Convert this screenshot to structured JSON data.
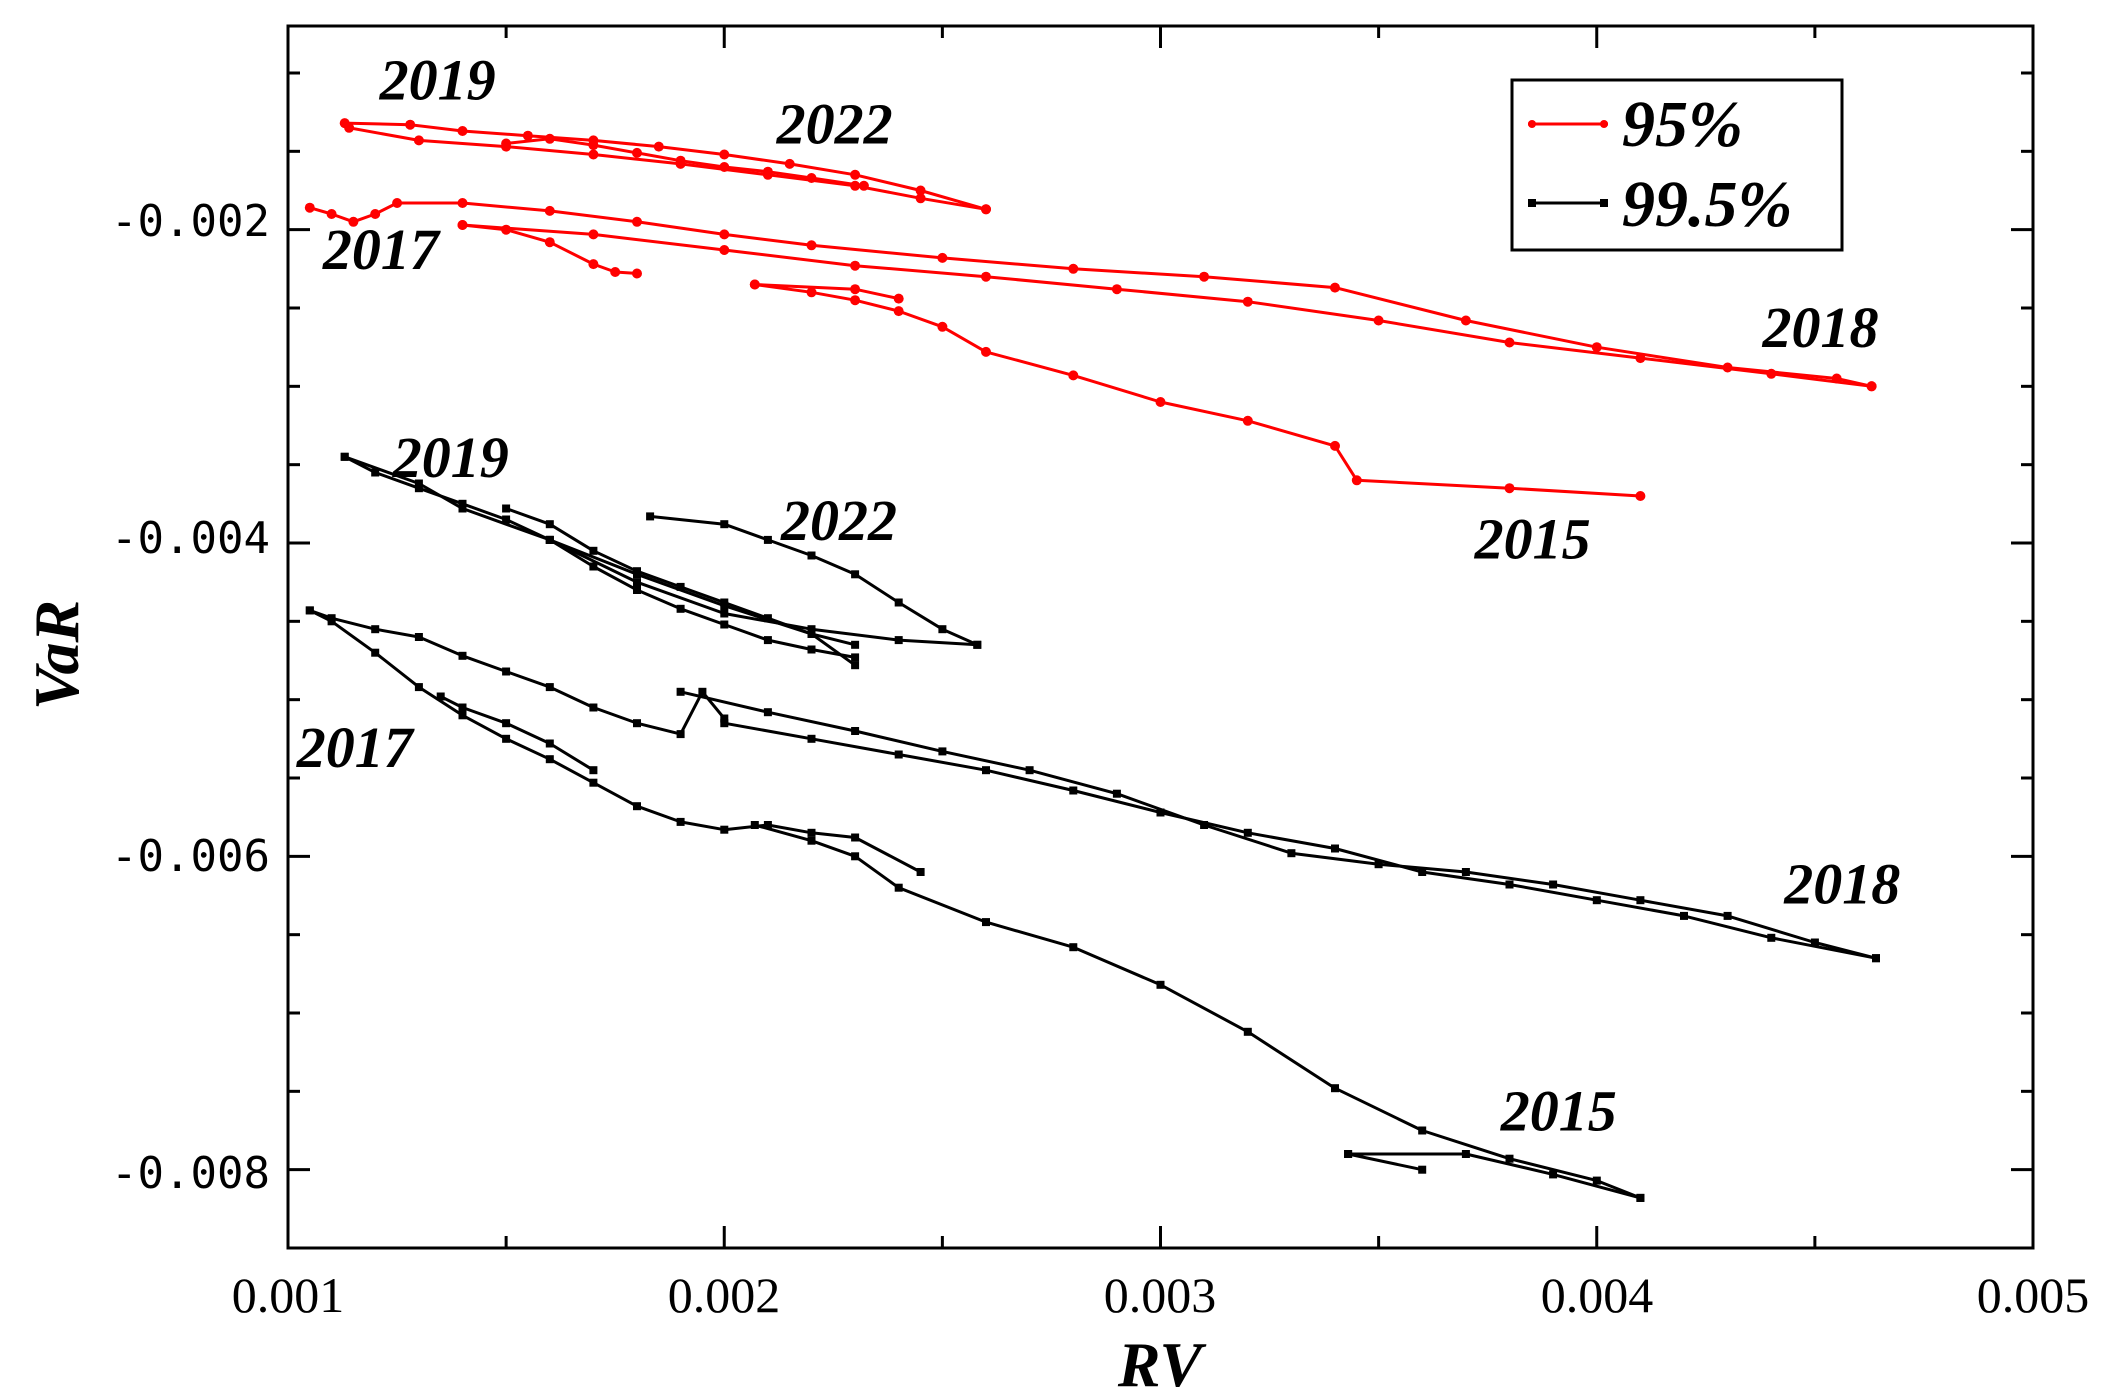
{
  "chart_data": {
    "type": "line",
    "title": "",
    "xlabel": "RV",
    "ylabel": "VaR",
    "xlim": [
      0.001,
      0.005
    ],
    "ylim": [
      -0.0085,
      -0.0007
    ],
    "xticks": [
      "0.001",
      "0.002",
      "0.003",
      "0.004",
      "0.005"
    ],
    "yticks": [
      "-0.002",
      "-0.004",
      "-0.006",
      "-0.008"
    ],
    "legend_position": "top-right",
    "series": [
      {
        "name": "95%",
        "color": "#ff0000",
        "segments": [
          [
            [
              0.00113,
              -0.00132
            ],
            [
              0.00128,
              -0.00133
            ],
            [
              0.0014,
              -0.00137
            ],
            [
              0.00155,
              -0.0014
            ],
            [
              0.0017,
              -0.00143
            ],
            [
              0.00185,
              -0.00147
            ],
            [
              0.002,
              -0.00152
            ],
            [
              0.00215,
              -0.00158
            ],
            [
              0.0023,
              -0.00165
            ],
            [
              0.00245,
              -0.00175
            ],
            [
              0.0026,
              -0.00187
            ]
          ],
          [
            [
              0.0026,
              -0.00187
            ],
            [
              0.00245,
              -0.0018
            ],
            [
              0.0023,
              -0.00172
            ],
            [
              0.0021,
              -0.00165
            ],
            [
              0.0019,
              -0.00158
            ],
            [
              0.0017,
              -0.00152
            ],
            [
              0.0015,
              -0.00147
            ],
            [
              0.0013,
              -0.00143
            ],
            [
              0.00114,
              -0.00135
            ]
          ],
          [
            [
              0.0015,
              -0.00145
            ],
            [
              0.0016,
              -0.00142
            ],
            [
              0.0017,
              -0.00146
            ],
            [
              0.0018,
              -0.00151
            ],
            [
              0.0019,
              -0.00156
            ],
            [
              0.002,
              -0.0016
            ],
            [
              0.0021,
              -0.00163
            ],
            [
              0.0022,
              -0.00167
            ],
            [
              0.00232,
              -0.00172
            ]
          ],
          [
            [
              0.00105,
              -0.00186
            ],
            [
              0.0011,
              -0.0019
            ],
            [
              0.00115,
              -0.00195
            ],
            [
              0.0012,
              -0.0019
            ],
            [
              0.00125,
              -0.00183
            ],
            [
              0.0014,
              -0.00183
            ],
            [
              0.0016,
              -0.00188
            ],
            [
              0.0018,
              -0.00195
            ],
            [
              0.002,
              -0.00203
            ],
            [
              0.0022,
              -0.0021
            ],
            [
              0.0025,
              -0.00218
            ],
            [
              0.0028,
              -0.00225
            ],
            [
              0.0031,
              -0.0023
            ],
            [
              0.0034,
              -0.00237
            ],
            [
              0.0037,
              -0.00258
            ],
            [
              0.004,
              -0.00275
            ],
            [
              0.0043,
              -0.00288
            ],
            [
              0.00455,
              -0.00295
            ],
            [
              0.00463,
              -0.003
            ]
          ],
          [
            [
              0.00463,
              -0.003
            ],
            [
              0.0044,
              -0.00292
            ],
            [
              0.0041,
              -0.00282
            ],
            [
              0.0038,
              -0.00272
            ],
            [
              0.0035,
              -0.00258
            ],
            [
              0.0032,
              -0.00246
            ],
            [
              0.0029,
              -0.00238
            ],
            [
              0.0026,
              -0.0023
            ],
            [
              0.0023,
              -0.00223
            ],
            [
              0.002,
              -0.00213
            ],
            [
              0.0017,
              -0.00203
            ],
            [
              0.0014,
              -0.00197
            ]
          ],
          [
            [
              0.0014,
              -0.00197
            ],
            [
              0.0015,
              -0.002
            ],
            [
              0.0016,
              -0.00208
            ],
            [
              0.0017,
              -0.00222
            ],
            [
              0.00175,
              -0.00227
            ],
            [
              0.0018,
              -0.00228
            ]
          ],
          [
            [
              0.00207,
              -0.00235
            ],
            [
              0.0022,
              -0.0024
            ],
            [
              0.0023,
              -0.00245
            ],
            [
              0.0024,
              -0.00252
            ],
            [
              0.0025,
              -0.00262
            ],
            [
              0.0026,
              -0.00278
            ],
            [
              0.0028,
              -0.00293
            ],
            [
              0.003,
              -0.0031
            ],
            [
              0.0032,
              -0.00322
            ],
            [
              0.0034,
              -0.00338
            ],
            [
              0.00345,
              -0.0036
            ],
            [
              0.0038,
              -0.00365
            ],
            [
              0.0041,
              -0.0037
            ]
          ],
          [
            [
              0.00207,
              -0.00235
            ],
            [
              0.0023,
              -0.00238
            ],
            [
              0.0024,
              -0.00244
            ]
          ]
        ]
      },
      {
        "name": "99.5%",
        "color": "#000000",
        "segments": [
          [
            [
              0.00113,
              -0.00345
            ],
            [
              0.0012,
              -0.00355
            ],
            [
              0.0013,
              -0.00365
            ],
            [
              0.0014,
              -0.00375
            ],
            [
              0.0015,
              -0.00385
            ],
            [
              0.0016,
              -0.00398
            ],
            [
              0.0017,
              -0.00415
            ],
            [
              0.0018,
              -0.0043
            ],
            [
              0.0019,
              -0.00442
            ],
            [
              0.002,
              -0.00452
            ],
            [
              0.0021,
              -0.00462
            ],
            [
              0.0022,
              -0.00468
            ],
            [
              0.0023,
              -0.00473
            ]
          ],
          [
            [
              0.00113,
              -0.00345
            ],
            [
              0.0013,
              -0.00362
            ],
            [
              0.0014,
              -0.00378
            ],
            [
              0.0016,
              -0.00398
            ],
            [
              0.0018,
              -0.0042
            ],
            [
              0.002,
              -0.0044
            ],
            [
              0.0022,
              -0.00458
            ],
            [
              0.0023,
              -0.00465
            ]
          ],
          [
            [
              0.0015,
              -0.00378
            ],
            [
              0.0016,
              -0.00388
            ],
            [
              0.0017,
              -0.00405
            ],
            [
              0.0018,
              -0.00418
            ],
            [
              0.0019,
              -0.00428
            ],
            [
              0.002,
              -0.00438
            ],
            [
              0.0021,
              -0.00448
            ],
            [
              0.0022,
              -0.00458
            ],
            [
              0.0023,
              -0.00478
            ]
          ],
          [
            [
              0.00183,
              -0.00383
            ],
            [
              0.002,
              -0.00388
            ],
            [
              0.0021,
              -0.00398
            ],
            [
              0.0022,
              -0.00408
            ],
            [
              0.0023,
              -0.0042
            ],
            [
              0.0024,
              -0.00438
            ],
            [
              0.0025,
              -0.00455
            ],
            [
              0.00258,
              -0.00465
            ]
          ],
          [
            [
              0.00258,
              -0.00465
            ],
            [
              0.0024,
              -0.00462
            ],
            [
              0.0022,
              -0.00455
            ],
            [
              0.002,
              -0.00445
            ],
            [
              0.0018,
              -0.00425
            ],
            [
              0.0016,
              -0.00398
            ]
          ],
          [
            [
              0.00105,
              -0.00443
            ],
            [
              0.0011,
              -0.00448
            ],
            [
              0.0012,
              -0.00455
            ],
            [
              0.0013,
              -0.0046
            ],
            [
              0.0014,
              -0.00472
            ],
            [
              0.0015,
              -0.00482
            ],
            [
              0.0016,
              -0.00492
            ],
            [
              0.0017,
              -0.00505
            ],
            [
              0.0018,
              -0.00515
            ],
            [
              0.0019,
              -0.00522
            ],
            [
              0.00195,
              -0.00495
            ],
            [
              0.002,
              -0.00512
            ]
          ],
          [
            [
              0.00105,
              -0.00443
            ],
            [
              0.0011,
              -0.0045
            ],
            [
              0.0012,
              -0.0047
            ],
            [
              0.0013,
              -0.00492
            ],
            [
              0.0014,
              -0.0051
            ],
            [
              0.0015,
              -0.00525
            ],
            [
              0.0016,
              -0.00538
            ],
            [
              0.0017,
              -0.00553
            ],
            [
              0.0018,
              -0.00568
            ],
            [
              0.0019,
              -0.00578
            ],
            [
              0.002,
              -0.00583
            ],
            [
              0.0021,
              -0.0058
            ],
            [
              0.0022,
              -0.00585
            ],
            [
              0.0023,
              -0.00588
            ],
            [
              0.00245,
              -0.0061
            ]
          ],
          [
            [
              0.0019,
              -0.00495
            ],
            [
              0.0021,
              -0.00508
            ],
            [
              0.0023,
              -0.0052
            ],
            [
              0.0025,
              -0.00533
            ],
            [
              0.0027,
              -0.00545
            ],
            [
              0.0029,
              -0.0056
            ],
            [
              0.0031,
              -0.0058
            ],
            [
              0.0033,
              -0.00598
            ],
            [
              0.0035,
              -0.00605
            ],
            [
              0.0037,
              -0.0061
            ],
            [
              0.0039,
              -0.00618
            ],
            [
              0.0041,
              -0.00628
            ],
            [
              0.0043,
              -0.00638
            ],
            [
              0.0045,
              -0.00655
            ],
            [
              0.00464,
              -0.00665
            ]
          ],
          [
            [
              0.00464,
              -0.00665
            ],
            [
              0.0044,
              -0.00652
            ],
            [
              0.0042,
              -0.00638
            ],
            [
              0.004,
              -0.00628
            ],
            [
              0.0038,
              -0.00618
            ],
            [
              0.0036,
              -0.0061
            ],
            [
              0.0034,
              -0.00595
            ],
            [
              0.0032,
              -0.00585
            ],
            [
              0.003,
              -0.00572
            ],
            [
              0.0028,
              -0.00558
            ],
            [
              0.0026,
              -0.00545
            ],
            [
              0.0024,
              -0.00535
            ],
            [
              0.0022,
              -0.00525
            ],
            [
              0.002,
              -0.00515
            ]
          ],
          [
            [
              0.00135,
              -0.00498
            ],
            [
              0.0014,
              -0.00505
            ],
            [
              0.0015,
              -0.00515
            ],
            [
              0.0016,
              -0.00528
            ],
            [
              0.0017,
              -0.00545
            ]
          ],
          [
            [
              0.00207,
              -0.0058
            ],
            [
              0.0022,
              -0.0059
            ],
            [
              0.0023,
              -0.006
            ],
            [
              0.0024,
              -0.0062
            ],
            [
              0.0026,
              -0.00642
            ],
            [
              0.0028,
              -0.00658
            ],
            [
              0.003,
              -0.00682
            ],
            [
              0.0032,
              -0.00712
            ],
            [
              0.0034,
              -0.00748
            ],
            [
              0.0036,
              -0.00775
            ],
            [
              0.0038,
              -0.00793
            ],
            [
              0.004,
              -0.00807
            ],
            [
              0.0041,
              -0.00818
            ]
          ],
          [
            [
              0.00343,
              -0.0079
            ],
            [
              0.0036,
              -0.008
            ]
          ],
          [
            [
              0.00343,
              -0.0079
            ],
            [
              0.0037,
              -0.0079
            ],
            [
              0.0039,
              -0.00803
            ],
            [
              0.0041,
              -0.00818
            ]
          ]
        ]
      }
    ],
    "annotations": [
      {
        "text": "2019",
        "x": 0.00121,
        "y": -0.00117
      },
      {
        "text": "2022",
        "x": 0.00212,
        "y": -0.00145
      },
      {
        "text": "2017",
        "x": 0.00108,
        "y": -0.00225
      },
      {
        "text": "2018",
        "x": 0.00438,
        "y": -0.00275
      },
      {
        "text": "2015",
        "x": 0.00372,
        "y": -0.0041
      },
      {
        "text": "2019",
        "x": 0.00124,
        "y": -0.00358
      },
      {
        "text": "2022",
        "x": 0.00213,
        "y": -0.00398
      },
      {
        "text": "2017",
        "x": 0.00102,
        "y": -0.00543
      },
      {
        "text": "2018",
        "x": 0.00443,
        "y": -0.0063
      },
      {
        "text": "2015",
        "x": 0.00378,
        "y": -0.00775
      }
    ]
  }
}
